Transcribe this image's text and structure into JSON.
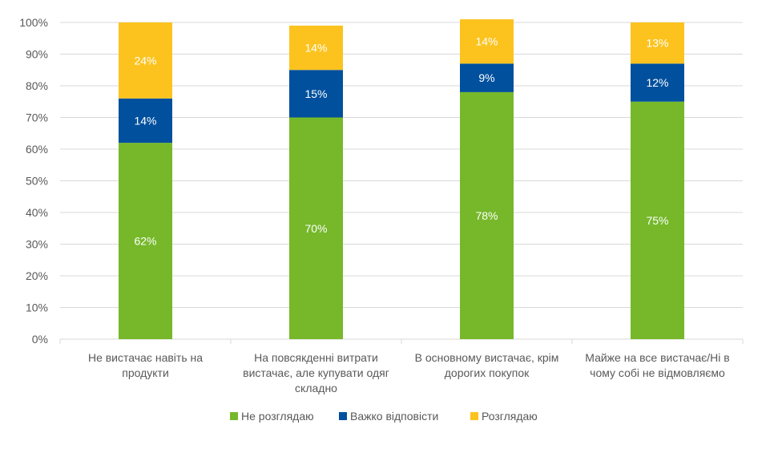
{
  "chart_data": {
    "type": "bar",
    "stacked": true,
    "categories": [
      [
        "Не вистачає навіть на",
        "продукти"
      ],
      [
        "На повсякденні витрати",
        "вистачає, але купувати одяг",
        "складно"
      ],
      [
        "В основному вистачає, крім",
        "дорогих покупок"
      ],
      [
        "Майже на все вистачає/Ні в",
        "чому собі не відмовляємо"
      ]
    ],
    "series": [
      {
        "name": "Не розглядаю",
        "values": [
          62,
          70,
          78,
          75
        ],
        "color": "#76B82A"
      },
      {
        "name": "Важко відповісти",
        "values": [
          14,
          15,
          9,
          12
        ],
        "color": "#00509E"
      },
      {
        "name": "Розглядаю",
        "values": [
          24,
          14,
          14,
          13
        ],
        "color": "#FCC31E"
      }
    ],
    "yticks": [
      "0%",
      "10%",
      "20%",
      "30%",
      "40%",
      "50%",
      "60%",
      "70%",
      "80%",
      "90%",
      "100%"
    ],
    "ylim": [
      0,
      100
    ],
    "grid": true,
    "legend": "bottom"
  }
}
